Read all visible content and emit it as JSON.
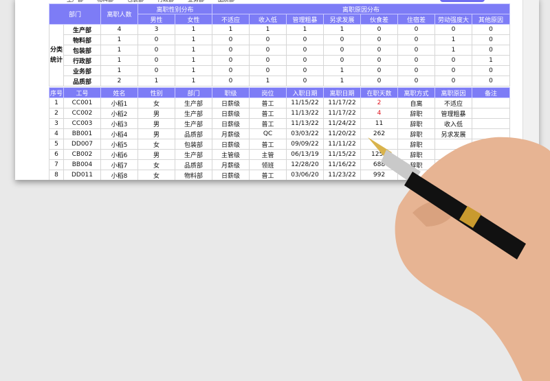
{
  "top_strip": {
    "depts": [
      "生产部",
      "物料部",
      "包装部",
      "行政部",
      "业务部",
      "品质部"
    ]
  },
  "summary": {
    "headers": {
      "dept": "部门",
      "count": "离职人数",
      "gender_group": "离职性别分布",
      "reason_group": "离职原因分布",
      "side_label": "分类统计"
    },
    "gender_cols": [
      "男性",
      "女性"
    ],
    "reason_cols": [
      "不适应",
      "收入低",
      "管理粗暴",
      "另求发展",
      "伙食差",
      "住宿差",
      "劳动强度大",
      "其他原因"
    ],
    "rows": [
      {
        "dept": "生产部",
        "count": "4",
        "g": [
          "3",
          "1"
        ],
        "r": [
          "1",
          "1",
          "1",
          "1",
          "0",
          "0",
          "0",
          "0"
        ]
      },
      {
        "dept": "物料部",
        "count": "1",
        "g": [
          "0",
          "1"
        ],
        "r": [
          "0",
          "0",
          "0",
          "0",
          "0",
          "0",
          "1",
          "0"
        ]
      },
      {
        "dept": "包装部",
        "count": "1",
        "g": [
          "0",
          "1"
        ],
        "r": [
          "0",
          "0",
          "0",
          "0",
          "0",
          "0",
          "1",
          "0"
        ]
      },
      {
        "dept": "行政部",
        "count": "1",
        "g": [
          "0",
          "1"
        ],
        "r": [
          "0",
          "0",
          "0",
          "0",
          "0",
          "0",
          "0",
          "1"
        ]
      },
      {
        "dept": "业务部",
        "count": "1",
        "g": [
          "0",
          "1"
        ],
        "r": [
          "0",
          "0",
          "0",
          "1",
          "0",
          "0",
          "0",
          "0"
        ]
      },
      {
        "dept": "品质部",
        "count": "2",
        "g": [
          "1",
          "1"
        ],
        "r": [
          "0",
          "1",
          "0",
          "1",
          "0",
          "0",
          "0",
          "0"
        ]
      }
    ]
  },
  "detail": {
    "columns": [
      "序号",
      "工号",
      "姓名",
      "性别",
      "部门",
      "职级",
      "岗位",
      "入职日期",
      "离职日期",
      "在职天数",
      "离职方式",
      "离职原因",
      "备注"
    ],
    "rows": [
      [
        "1",
        "CC001",
        "小稻1",
        "女",
        "生产部",
        "日薪级",
        "普工",
        "11/15/22",
        "11/17/22",
        "2",
        "自离",
        "不适应",
        ""
      ],
      [
        "2",
        "CC002",
        "小稻2",
        "男",
        "生产部",
        "日薪级",
        "普工",
        "11/13/22",
        "11/17/22",
        "4",
        "辞职",
        "管理粗暴",
        ""
      ],
      [
        "3",
        "CC003",
        "小稻3",
        "男",
        "生产部",
        "日薪级",
        "普工",
        "11/13/22",
        "11/24/22",
        "11",
        "辞职",
        "收入低",
        ""
      ],
      [
        "4",
        "BB001",
        "小稻4",
        "男",
        "品质部",
        "月薪级",
        "QC",
        "03/03/22",
        "11/20/22",
        "262",
        "辞职",
        "另求发展",
        ""
      ],
      [
        "5",
        "DD007",
        "小稻5",
        "女",
        "包装部",
        "日薪级",
        "普工",
        "09/09/22",
        "11/11/22",
        "",
        "辞职",
        "",
        ""
      ],
      [
        "6",
        "CB002",
        "小稻6",
        "男",
        "生产部",
        "主管级",
        "主管",
        "06/13/19",
        "11/15/22",
        "1251",
        "辞职",
        "",
        ""
      ],
      [
        "7",
        "BB004",
        "小稻7",
        "女",
        "品质部",
        "月薪级",
        "领班",
        "12/28/20",
        "11/16/22",
        "688",
        "辞职",
        "",
        ""
      ],
      [
        "8",
        "DD011",
        "小稻8",
        "女",
        "物料部",
        "日薪级",
        "普工",
        "03/06/20",
        "11/23/22",
        "992",
        "",
        "",
        ""
      ]
    ],
    "highlight_color": "#e0141e"
  },
  "colors": {
    "header": "#7d7cf6"
  }
}
